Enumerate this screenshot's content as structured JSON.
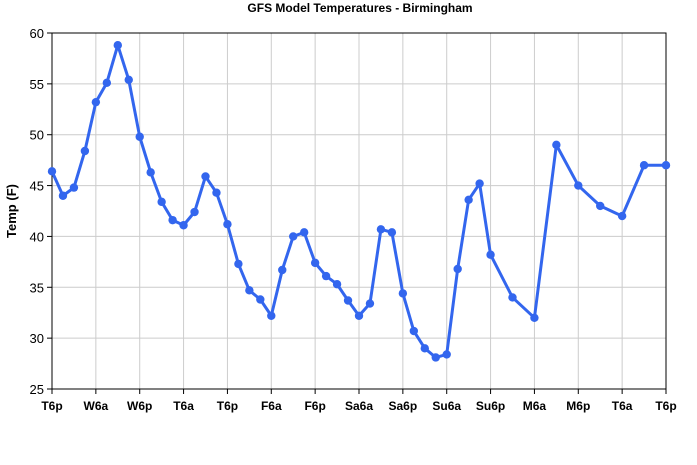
{
  "chart_data": {
    "type": "line",
    "title": "GFS Model Temperatures - Birmingham",
    "xlabel": "",
    "ylabel": "Temp (F)",
    "ylim": [
      25,
      60
    ],
    "yticks": [
      25,
      30,
      35,
      40,
      45,
      50,
      55,
      60
    ],
    "xlim": [
      0,
      28
    ],
    "xticks": [
      {
        "label": "T6p",
        "x": 0
      },
      {
        "label": "W6a",
        "x": 2
      },
      {
        "label": "W6p",
        "x": 4
      },
      {
        "label": "T6a",
        "x": 6
      },
      {
        "label": "T6p",
        "x": 8
      },
      {
        "label": "F6a",
        "x": 10
      },
      {
        "label": "F6p",
        "x": 12
      },
      {
        "label": "Sa6a",
        "x": 14
      },
      {
        "label": "Sa6p",
        "x": 16
      },
      {
        "label": "Su6a",
        "x": 18
      },
      {
        "label": "Su6p",
        "x": 20
      },
      {
        "label": "M6a",
        "x": 22
      },
      {
        "label": "M6p",
        "x": 24
      },
      {
        "label": "T6a",
        "x": 26
      },
      {
        "label": "T6p",
        "x": 28
      }
    ],
    "grid": true,
    "colors": {
      "series": "#3366ee",
      "marker": "#3366ee",
      "grid": "#cccccc",
      "axis": "#000000"
    },
    "series": [
      {
        "x": [
          0,
          0.5,
          1,
          1.5,
          2,
          2.5,
          3,
          3.5,
          4,
          4.5,
          5,
          5.5,
          6,
          6.5,
          7,
          7.5,
          8,
          8.5,
          9,
          9.5,
          10,
          10.5,
          11,
          11.5,
          12,
          12.5,
          13,
          13.5,
          14,
          14.5,
          15,
          15.5,
          16,
          16.5,
          17,
          17.5,
          18,
          18.5,
          19,
          19.5,
          20,
          21,
          22,
          23,
          24,
          25,
          26,
          27,
          28
        ],
        "values": [
          46.4,
          44.0,
          44.8,
          48.4,
          53.2,
          55.1,
          58.8,
          55.4,
          49.8,
          46.3,
          43.4,
          41.6,
          41.1,
          42.4,
          45.9,
          44.3,
          41.2,
          37.3,
          34.7,
          33.8,
          32.2,
          36.7,
          40.0,
          40.4,
          37.4,
          36.1,
          35.3,
          33.7,
          32.2,
          33.4,
          40.7,
          40.4,
          34.4,
          30.7,
          29.0,
          28.1,
          28.4,
          36.8,
          43.6,
          45.2,
          38.2,
          34.0,
          32.0,
          49.0,
          45.0,
          43.0,
          42.0,
          47.0,
          47.0
        ]
      }
    ]
  }
}
